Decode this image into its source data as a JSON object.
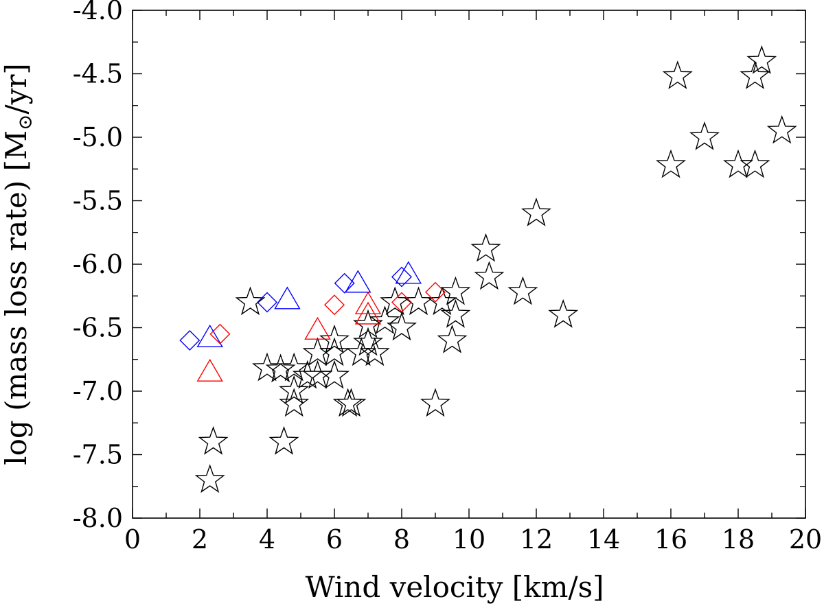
{
  "chart_data": {
    "type": "scatter",
    "title": "",
    "xlabel": "Wind velocity [km/s]",
    "ylabel_main": "log (mass loss rate) [M",
    "ylabel_sub": "⊙",
    "ylabel_tail": "/yr]",
    "xlim": [
      0,
      20
    ],
    "ylim": [
      -8.0,
      -4.0
    ],
    "xticks": [
      "0",
      "2",
      "4",
      "6",
      "8",
      "10",
      "12",
      "14",
      "16",
      "18",
      "20"
    ],
    "yticks": [
      "-8.0",
      "-7.5",
      "-7.0",
      "-6.5",
      "-6.0",
      "-5.5",
      "-5.0",
      "-4.5",
      "-4.0"
    ],
    "grid": false,
    "series": [
      {
        "name": "stars",
        "marker": "star",
        "color": "#000000",
        "points": [
          [
            2.3,
            -7.7
          ],
          [
            2.4,
            -7.4
          ],
          [
            3.5,
            -6.3
          ],
          [
            4.0,
            -6.82
          ],
          [
            4.4,
            -6.83
          ],
          [
            4.5,
            -7.4
          ],
          [
            4.8,
            -6.82
          ],
          [
            4.8,
            -7.0
          ],
          [
            4.8,
            -7.1
          ],
          [
            5.2,
            -6.88
          ],
          [
            5.5,
            -6.88
          ],
          [
            5.5,
            -6.7
          ],
          [
            6.0,
            -6.6
          ],
          [
            6.0,
            -6.88
          ],
          [
            6.0,
            -6.7
          ],
          [
            6.4,
            -7.1
          ],
          [
            6.5,
            -7.1
          ],
          [
            6.8,
            -6.7
          ],
          [
            7.0,
            -6.62
          ],
          [
            7.0,
            -6.48
          ],
          [
            7.2,
            -6.7
          ],
          [
            7.5,
            -6.45
          ],
          [
            7.8,
            -6.3
          ],
          [
            8.0,
            -6.5
          ],
          [
            8.5,
            -6.3
          ],
          [
            9.2,
            -6.3
          ],
          [
            9.5,
            -6.6
          ],
          [
            9.6,
            -6.22
          ],
          [
            9.6,
            -6.4
          ],
          [
            9.0,
            -7.1
          ],
          [
            10.5,
            -5.88
          ],
          [
            10.6,
            -6.1
          ],
          [
            11.6,
            -6.22
          ],
          [
            12.0,
            -5.6
          ],
          [
            12.8,
            -6.4
          ],
          [
            16.0,
            -5.22
          ],
          [
            16.2,
            -4.52
          ],
          [
            17.0,
            -5.0
          ],
          [
            18.0,
            -5.22
          ],
          [
            18.5,
            -5.22
          ],
          [
            18.5,
            -4.52
          ],
          [
            18.7,
            -4.4
          ],
          [
            19.3,
            -4.95
          ]
        ]
      },
      {
        "name": "blue diamonds",
        "marker": "diamond",
        "color": "#0000ff",
        "points": [
          [
            1.7,
            -6.6
          ],
          [
            4.0,
            -6.3
          ],
          [
            6.3,
            -6.15
          ],
          [
            8.0,
            -6.1
          ]
        ]
      },
      {
        "name": "blue triangles",
        "marker": "triangle",
        "color": "#0000ff",
        "points": [
          [
            2.3,
            -6.58
          ],
          [
            4.6,
            -6.28
          ],
          [
            6.7,
            -6.15
          ],
          [
            8.2,
            -6.08
          ]
        ]
      },
      {
        "name": "red diamonds",
        "marker": "diamond",
        "color": "#ff0000",
        "points": [
          [
            2.6,
            -6.55
          ],
          [
            6.0,
            -6.32
          ],
          [
            8.0,
            -6.3
          ],
          [
            9.0,
            -6.22
          ]
        ]
      },
      {
        "name": "red triangles",
        "marker": "triangle",
        "color": "#ff0000",
        "points": [
          [
            2.3,
            -6.85
          ],
          [
            5.5,
            -6.52
          ],
          [
            7.0,
            -6.32
          ],
          [
            7.0,
            -6.4
          ]
        ]
      }
    ]
  }
}
